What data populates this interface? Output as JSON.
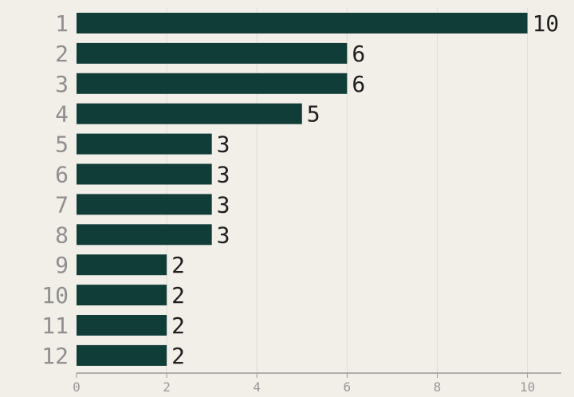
{
  "chart_data": {
    "type": "bar",
    "orientation": "horizontal",
    "categories": [
      "1",
      "2",
      "3",
      "4",
      "5",
      "6",
      "7",
      "8",
      "9",
      "10",
      "11",
      "12"
    ],
    "values": [
      10,
      6,
      6,
      5,
      3,
      3,
      3,
      3,
      2,
      2,
      2,
      2
    ],
    "data_labels": [
      "10",
      "6",
      "6",
      "5",
      "3",
      "3",
      "3",
      "3",
      "2",
      "2",
      "2",
      "2"
    ],
    "xlim": [
      0,
      10.75
    ],
    "xticks": [
      0,
      2,
      4,
      6,
      8,
      10
    ],
    "xtick_labels": [
      "0",
      "2",
      "4",
      "6",
      "8",
      "10"
    ],
    "title": "",
    "xlabel": "",
    "ylabel": "",
    "grid": "vertical",
    "legend": "none",
    "colors": {
      "bar": "#113d38",
      "background": "#f2eee8",
      "grid": "#e0dcd6",
      "axis": "#999999",
      "category_text": "#8f8f8f",
      "value_text": "#1e1e1e",
      "tick_text": "#9a9a9a"
    }
  }
}
